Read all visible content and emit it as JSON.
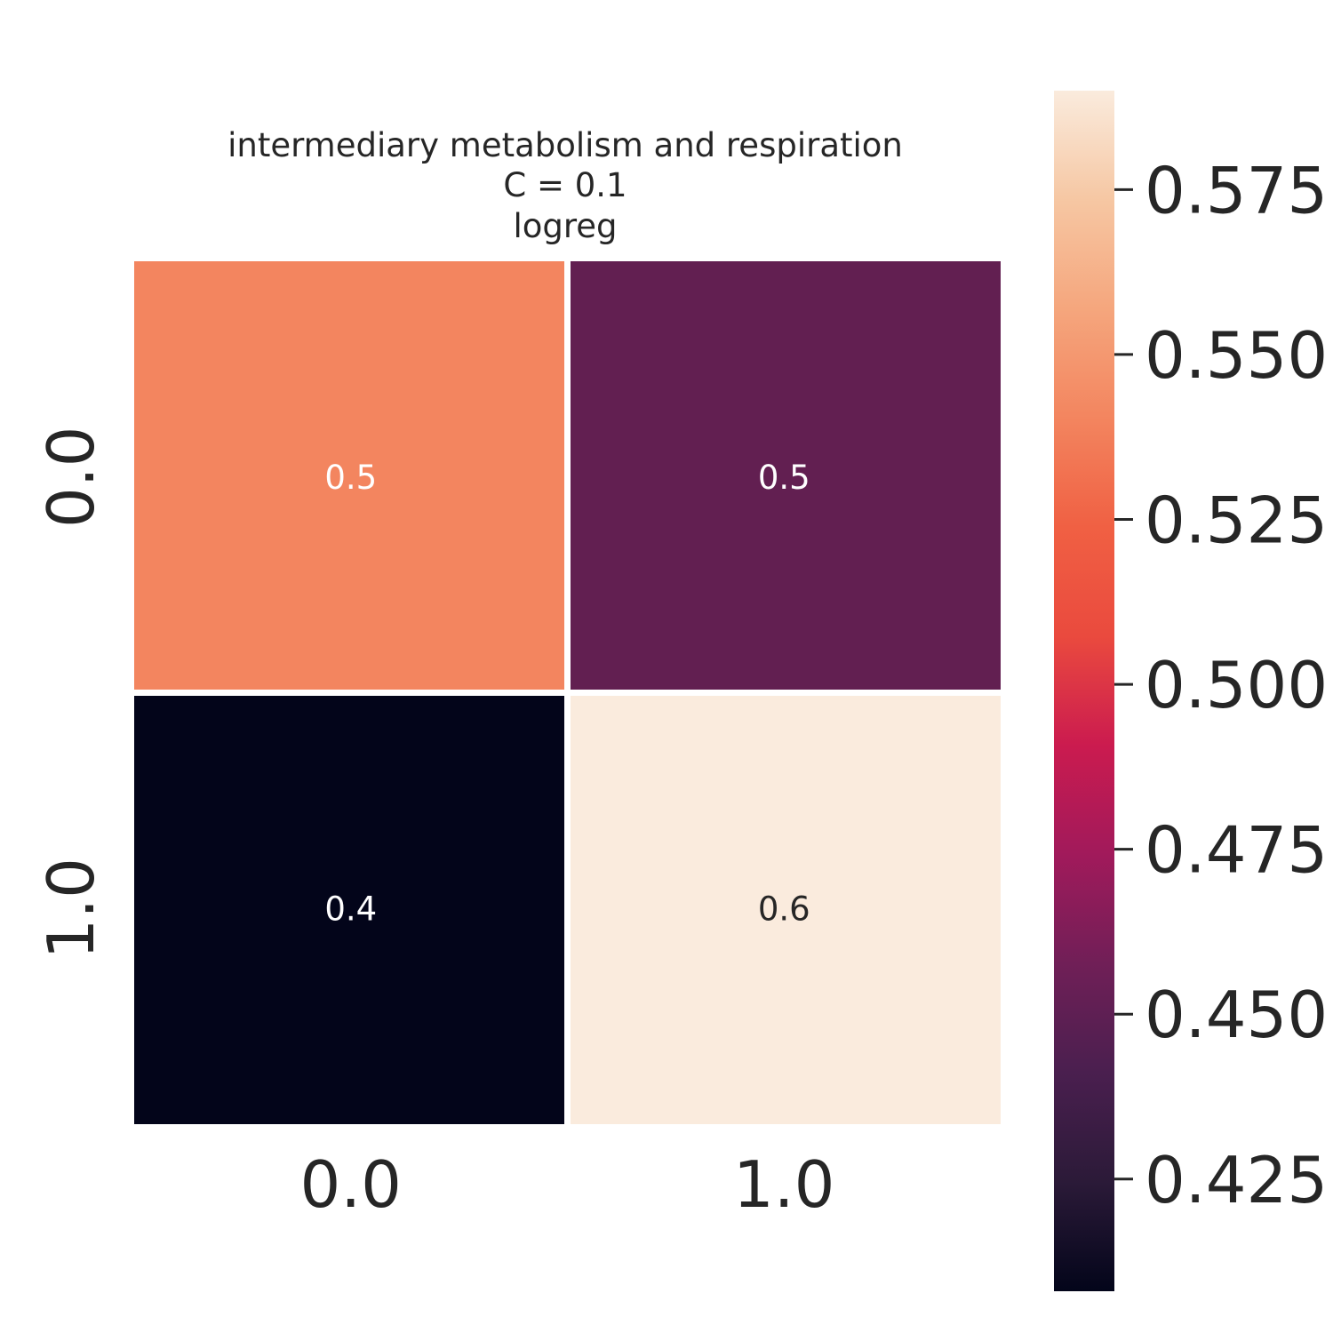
{
  "chart_data": {
    "type": "heatmap",
    "title": [
      "intermediary metabolism and respiration",
      "C = 0.1",
      "logreg"
    ],
    "x_categories": [
      "0.0",
      "1.0"
    ],
    "y_categories": [
      "0.0",
      "1.0"
    ],
    "values": [
      [
        0.55,
        0.46
      ],
      [
        0.41,
        0.59
      ]
    ],
    "annotations": [
      [
        "0.5",
        "0.5"
      ],
      [
        "0.4",
        "0.6"
      ]
    ],
    "cell_colors": [
      [
        "#f3855f",
        "#621f51"
      ],
      [
        "#03051a",
        "#faebdd"
      ]
    ],
    "annotation_colors": [
      [
        "#ffffff",
        "#ffffff"
      ],
      [
        "#ffffff",
        "#262626"
      ]
    ],
    "colormap": "rocket",
    "colorbar": {
      "range": [
        0.408,
        0.59
      ],
      "ticks": [
        0.425,
        0.45,
        0.475,
        0.5,
        0.525,
        0.55,
        0.575
      ],
      "tick_labels": [
        "0.425",
        "0.450",
        "0.475",
        "0.500",
        "0.525",
        "0.550",
        "0.575"
      ],
      "stops": [
        "#03051a",
        "#2b1a38",
        "#4a1f4f",
        "#701f57",
        "#a11a5b",
        "#cb1b4f",
        "#ea4a3e",
        "#f06043",
        "#f3855f",
        "#f5a67d",
        "#f6c7a3",
        "#faebdd"
      ]
    }
  }
}
